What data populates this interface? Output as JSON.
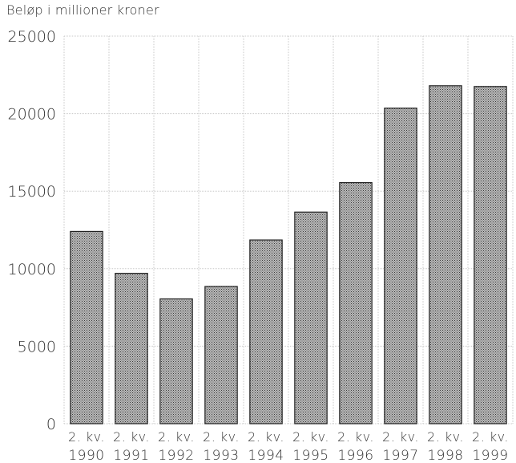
{
  "chart_data": {
    "type": "bar",
    "ylabel": "Beløp i millioner kroner",
    "xlabel": "",
    "title": "",
    "categories": [
      [
        "2. kv.",
        "1990"
      ],
      [
        "2. kv.",
        "1991"
      ],
      [
        "2. kv.",
        "1992"
      ],
      [
        "2. kv.",
        "1993"
      ],
      [
        "2. kv.",
        "1994"
      ],
      [
        "2. kv.",
        "1995"
      ],
      [
        "2. kv.",
        "1996"
      ],
      [
        "2. kv.",
        "1997"
      ],
      [
        "2. kv.",
        "1998"
      ],
      [
        "2. kv.",
        "1999"
      ]
    ],
    "values": [
      12400,
      9700,
      8050,
      8850,
      11850,
      13650,
      15550,
      20350,
      21800,
      21750
    ],
    "ylim": [
      0,
      25000
    ],
    "yticks": [
      "0",
      "5000",
      "10000",
      "15000",
      "20000",
      "25000"
    ],
    "grid": true,
    "bar_color": "#8f8f8f",
    "bar_edge": "#222222"
  }
}
